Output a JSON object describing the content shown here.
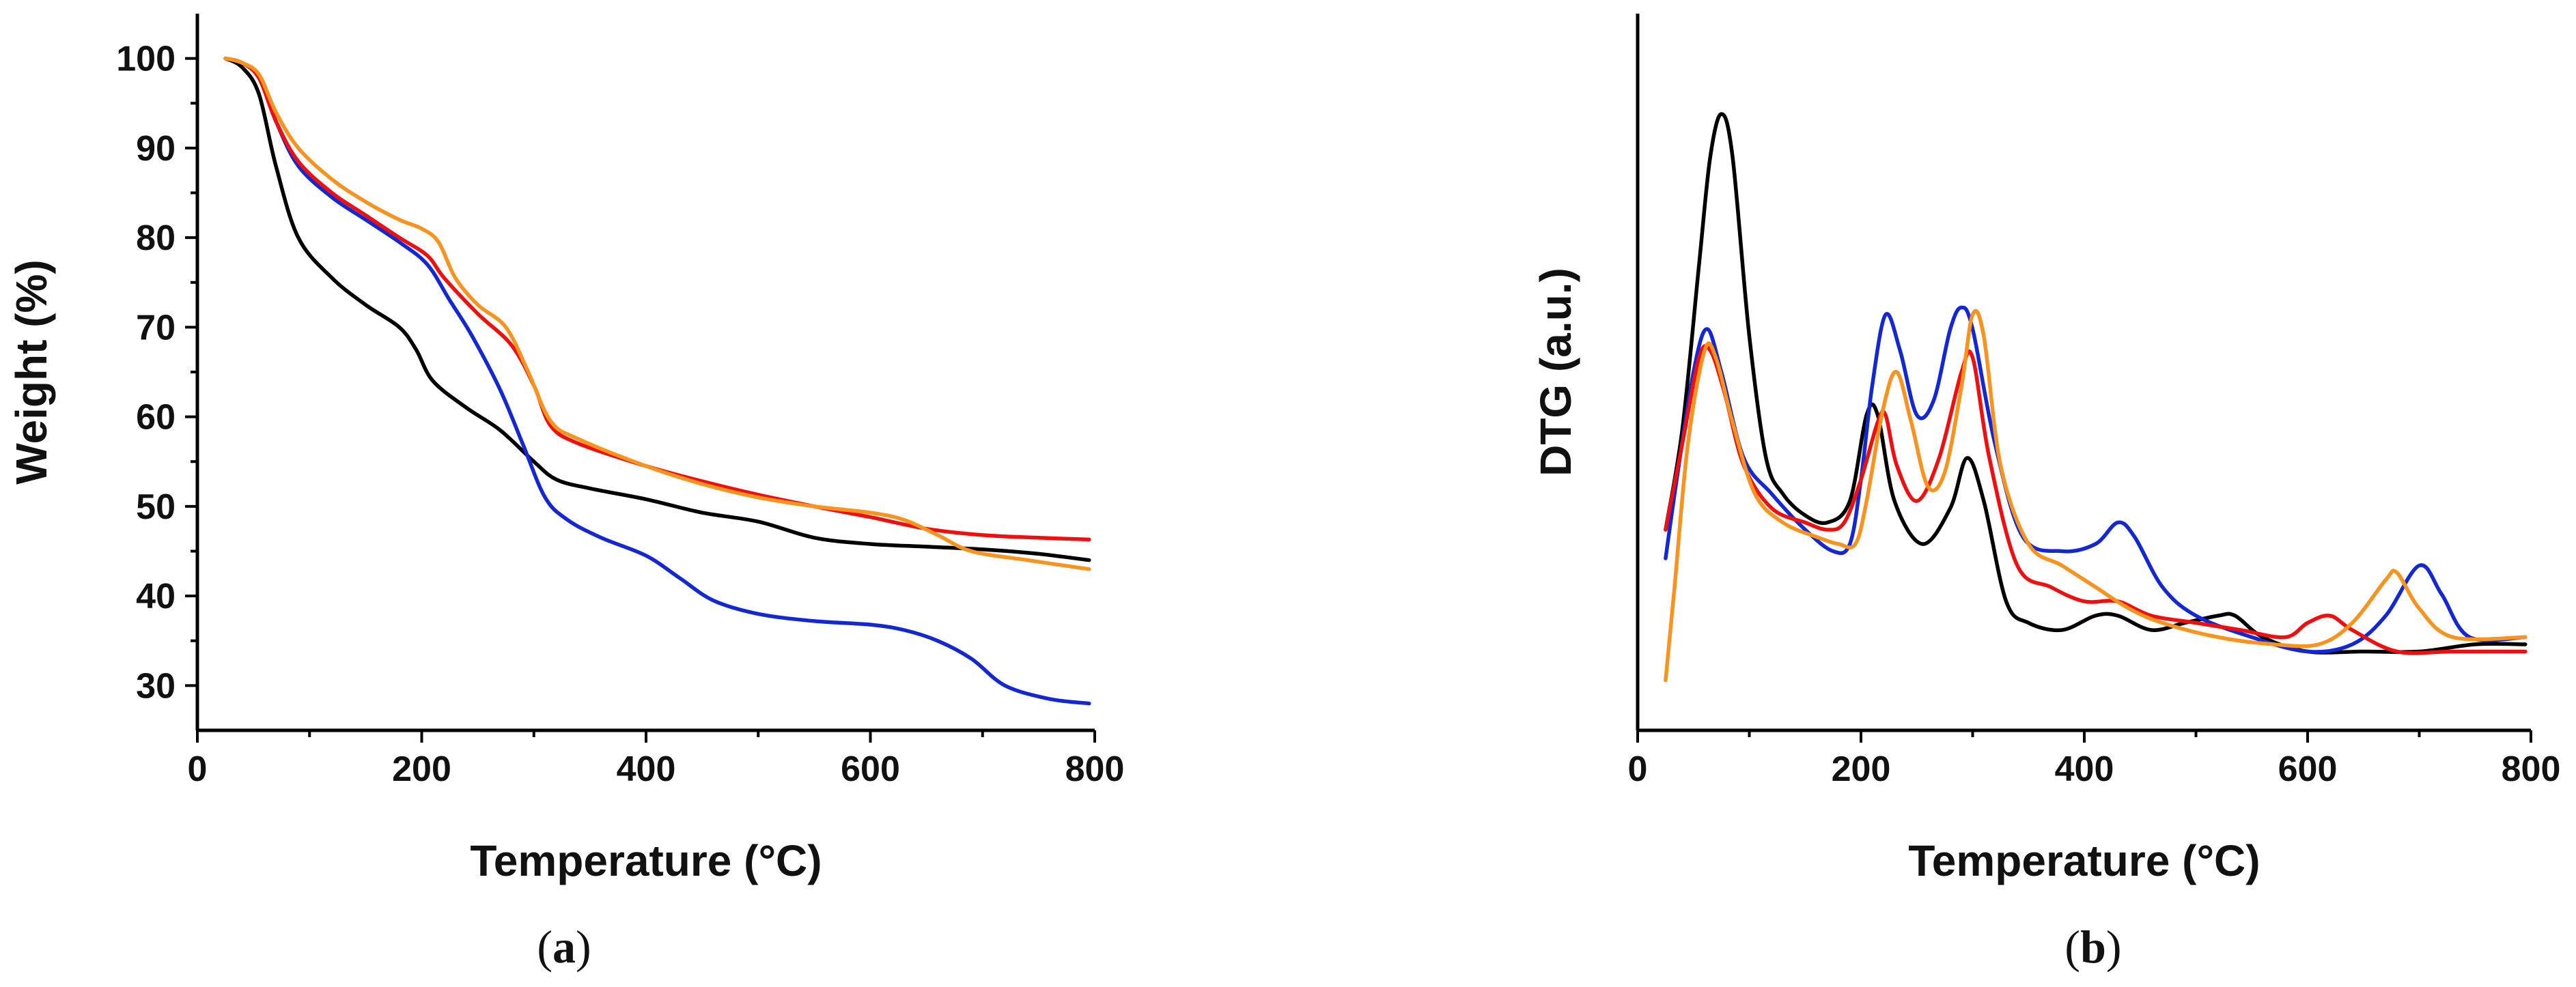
{
  "chart_data": [
    {
      "panel": "a",
      "type": "line",
      "caption_open": "(",
      "caption_letter": "a",
      "caption_close": ")",
      "xlabel": "Temperature (°C)",
      "ylabel": "Weight (%)",
      "xlim": [
        0,
        800
      ],
      "ylim": [
        25,
        105
      ],
      "xticks": [
        0,
        200,
        400,
        600,
        800
      ],
      "yticks": [
        30,
        40,
        50,
        60,
        70,
        80,
        90,
        100
      ],
      "series": [
        {
          "name": "black",
          "color": "#000000",
          "points": [
            [
              25,
              100
            ],
            [
              40,
              99
            ],
            [
              55,
              96
            ],
            [
              70,
              88
            ],
            [
              90,
              80
            ],
            [
              120,
              75.5
            ],
            [
              150,
              72.5
            ],
            [
              180,
              70
            ],
            [
              195,
              67.5
            ],
            [
              210,
              64
            ],
            [
              240,
              61
            ],
            [
              270,
              58.5
            ],
            [
              300,
              55
            ],
            [
              320,
              53
            ],
            [
              350,
              52
            ],
            [
              400,
              50.8
            ],
            [
              450,
              49.3
            ],
            [
              500,
              48.3
            ],
            [
              550,
              46.5
            ],
            [
              600,
              45.8
            ],
            [
              650,
              45.5
            ],
            [
              700,
              45.2
            ],
            [
              750,
              44.7
            ],
            [
              795,
              44
            ]
          ]
        },
        {
          "name": "blue",
          "color": "#1428d2",
          "points": [
            [
              25,
              100
            ],
            [
              40,
              99.5
            ],
            [
              55,
              98
            ],
            [
              70,
              93
            ],
            [
              90,
              88
            ],
            [
              120,
              84.5
            ],
            [
              150,
              82
            ],
            [
              180,
              79.5
            ],
            [
              205,
              77
            ],
            [
              225,
              73
            ],
            [
              245,
              69
            ],
            [
              270,
              63
            ],
            [
              290,
              57
            ],
            [
              310,
              51
            ],
            [
              330,
              48.5
            ],
            [
              360,
              46.5
            ],
            [
              400,
              44.5
            ],
            [
              430,
              42
            ],
            [
              460,
              39.5
            ],
            [
              500,
              38
            ],
            [
              550,
              37.2
            ],
            [
              600,
              36.8
            ],
            [
              630,
              36.2
            ],
            [
              660,
              35
            ],
            [
              690,
              33
            ],
            [
              720,
              30
            ],
            [
              760,
              28.5
            ],
            [
              795,
              28
            ]
          ]
        },
        {
          "name": "red",
          "color": "#ee1010",
          "points": [
            [
              25,
              100
            ],
            [
              40,
              99.5
            ],
            [
              55,
              97.8
            ],
            [
              70,
              93
            ],
            [
              90,
              88.5
            ],
            [
              120,
              85
            ],
            [
              150,
              82.5
            ],
            [
              180,
              80
            ],
            [
              205,
              78
            ],
            [
              220,
              75.5
            ],
            [
              250,
              71.5
            ],
            [
              280,
              68
            ],
            [
              300,
              63.5
            ],
            [
              315,
              59
            ],
            [
              340,
              57
            ],
            [
              400,
              54.5
            ],
            [
              450,
              52.8
            ],
            [
              500,
              51.3
            ],
            [
              550,
              50
            ],
            [
              600,
              48.8
            ],
            [
              650,
              47.5
            ],
            [
              700,
              46.8
            ],
            [
              750,
              46.5
            ],
            [
              795,
              46.3
            ]
          ]
        },
        {
          "name": "orange",
          "color": "#f7931e",
          "points": [
            [
              25,
              100
            ],
            [
              40,
              99.5
            ],
            [
              55,
              98.2
            ],
            [
              70,
              94
            ],
            [
              90,
              90
            ],
            [
              120,
              86.5
            ],
            [
              150,
              84
            ],
            [
              180,
              82
            ],
            [
              200,
              81
            ],
            [
              215,
              79.5
            ],
            [
              230,
              75.5
            ],
            [
              250,
              72.5
            ],
            [
              275,
              70
            ],
            [
              295,
              65
            ],
            [
              315,
              59.5
            ],
            [
              340,
              57.5
            ],
            [
              400,
              54.5
            ],
            [
              450,
              52.5
            ],
            [
              500,
              51
            ],
            [
              550,
              50
            ],
            [
              600,
              49.3
            ],
            [
              630,
              48.5
            ],
            [
              660,
              46.8
            ],
            [
              690,
              45
            ],
            [
              740,
              44
            ],
            [
              795,
              43
            ]
          ]
        }
      ]
    },
    {
      "panel": "b",
      "type": "line",
      "caption_open": "(",
      "caption_letter": "b",
      "caption_close": ")",
      "xlabel": "Temperature (°C)",
      "ylabel": "DTG (a.u.)",
      "xlim": [
        0,
        800
      ],
      "ylim": [
        0,
        100
      ],
      "xticks": [
        0,
        200,
        400,
        600,
        800
      ],
      "yticks": [],
      "series": [
        {
          "name": "black",
          "color": "#000000",
          "points": [
            [
              25,
              28
            ],
            [
              40,
              42
            ],
            [
              55,
              65
            ],
            [
              65,
              80
            ],
            [
              75,
              86
            ],
            [
              85,
              80
            ],
            [
              100,
              55
            ],
            [
              115,
              38
            ],
            [
              130,
              33
            ],
            [
              150,
              30
            ],
            [
              170,
              29
            ],
            [
              190,
              32
            ],
            [
              205,
              44
            ],
            [
              215,
              44
            ],
            [
              230,
              32
            ],
            [
              255,
              26
            ],
            [
              280,
              31
            ],
            [
              295,
              38
            ],
            [
              310,
              32
            ],
            [
              330,
              18
            ],
            [
              350,
              15
            ],
            [
              380,
              14
            ],
            [
              410,
              16
            ],
            [
              430,
              16
            ],
            [
              460,
              14
            ],
            [
              490,
              15
            ],
            [
              520,
              16
            ],
            [
              535,
              16
            ],
            [
              560,
              13
            ],
            [
              600,
              11
            ],
            [
              650,
              11
            ],
            [
              700,
              11
            ],
            [
              750,
              12
            ],
            [
              795,
              12
            ]
          ]
        },
        {
          "name": "blue",
          "color": "#1428d2",
          "points": [
            [
              25,
              24
            ],
            [
              35,
              35
            ],
            [
              50,
              50
            ],
            [
              62,
              56
            ],
            [
              75,
              50
            ],
            [
              95,
              38
            ],
            [
              120,
              33
            ],
            [
              150,
              28
            ],
            [
              175,
              25
            ],
            [
              190,
              26
            ],
            [
              200,
              35
            ],
            [
              210,
              48
            ],
            [
              222,
              58
            ],
            [
              235,
              53
            ],
            [
              250,
              44
            ],
            [
              265,
              46
            ],
            [
              280,
              56
            ],
            [
              290,
              59
            ],
            [
              300,
              56
            ],
            [
              320,
              40
            ],
            [
              345,
              27
            ],
            [
              380,
              25
            ],
            [
              410,
              26
            ],
            [
              430,
              29
            ],
            [
              445,
              27
            ],
            [
              470,
              20
            ],
            [
              500,
              16
            ],
            [
              550,
              13
            ],
            [
              600,
              11
            ],
            [
              640,
              12
            ],
            [
              670,
              16
            ],
            [
              700,
              23
            ],
            [
              720,
              19
            ],
            [
              745,
              13
            ],
            [
              795,
              13
            ]
          ]
        },
        {
          "name": "red",
          "color": "#ee1010",
          "points": [
            [
              25,
              28
            ],
            [
              40,
              40
            ],
            [
              55,
              52
            ],
            [
              65,
              53
            ],
            [
              78,
              47
            ],
            [
              95,
              37
            ],
            [
              120,
              31
            ],
            [
              150,
              29
            ],
            [
              170,
              28
            ],
            [
              185,
              29
            ],
            [
              200,
              35
            ],
            [
              215,
              43
            ],
            [
              222,
              44
            ],
            [
              232,
              37
            ],
            [
              250,
              32
            ],
            [
              270,
              38
            ],
            [
              290,
              50
            ],
            [
              300,
              52
            ],
            [
              315,
              38
            ],
            [
              340,
              23
            ],
            [
              370,
              20
            ],
            [
              400,
              18
            ],
            [
              430,
              18
            ],
            [
              460,
              16
            ],
            [
              500,
              15
            ],
            [
              540,
              14
            ],
            [
              580,
              13
            ],
            [
              600,
              15
            ],
            [
              620,
              16
            ],
            [
              640,
              14
            ],
            [
              680,
              11
            ],
            [
              730,
              11
            ],
            [
              795,
              11
            ]
          ]
        },
        {
          "name": "orange",
          "color": "#f7931e",
          "points": [
            [
              25,
              7
            ],
            [
              33,
              20
            ],
            [
              45,
              40
            ],
            [
              60,
              53
            ],
            [
              70,
              52
            ],
            [
              85,
              43
            ],
            [
              105,
              33
            ],
            [
              130,
              29
            ],
            [
              160,
              27
            ],
            [
              180,
              26
            ],
            [
              195,
              26
            ],
            [
              205,
              32
            ],
            [
              220,
              45
            ],
            [
              232,
              50
            ],
            [
              245,
              43
            ],
            [
              260,
              34
            ],
            [
              275,
              36
            ],
            [
              290,
              48
            ],
            [
              300,
              58
            ],
            [
              310,
              55
            ],
            [
              325,
              37
            ],
            [
              350,
              26
            ],
            [
              380,
              23
            ],
            [
              410,
              20
            ],
            [
              440,
              17
            ],
            [
              470,
              15
            ],
            [
              520,
              13
            ],
            [
              570,
              12
            ],
            [
              610,
              12
            ],
            [
              640,
              15
            ],
            [
              670,
              21
            ],
            [
              680,
              22
            ],
            [
              700,
              17
            ],
            [
              730,
              13
            ],
            [
              795,
              13
            ]
          ]
        }
      ]
    }
  ]
}
